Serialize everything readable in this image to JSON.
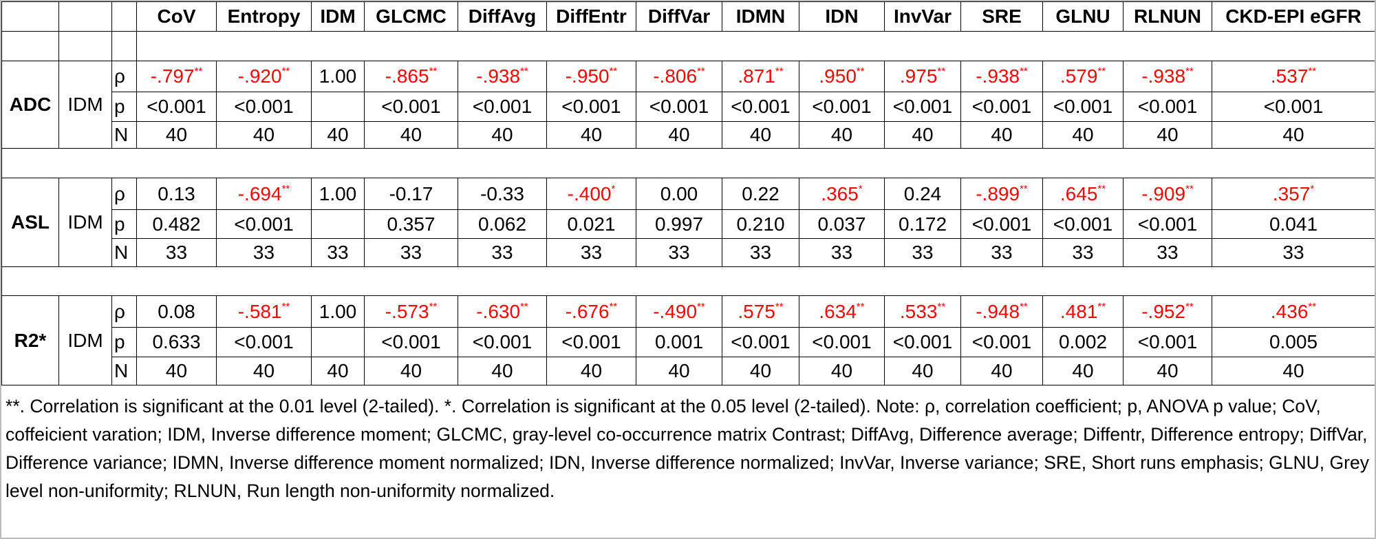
{
  "table": {
    "columns": [
      "CoV",
      "Entropy",
      "IDM",
      "GLCMC",
      "DiffAvg",
      "DiffEntr",
      "DiffVar",
      "IDMN",
      "IDN",
      "InvVar",
      "SRE",
      "GLNU",
      "RLNUN",
      "CKD-EPI eGFR"
    ],
    "groups": [
      {
        "modality": "ADC",
        "feature": "IDM",
        "rows": [
          {
            "stat": "ρ",
            "cells": [
              {
                "value": "-.797",
                "sig": "**"
              },
              {
                "value": "-.920",
                "sig": "**"
              },
              "1.00",
              {
                "value": "-.865",
                "sig": "**"
              },
              {
                "value": "-.938",
                "sig": "**"
              },
              {
                "value": "-.950",
                "sig": "**"
              },
              {
                "value": "-.806",
                "sig": "**"
              },
              {
                "value": ".871",
                "sig": "**"
              },
              {
                "value": ".950",
                "sig": "**"
              },
              {
                "value": ".975",
                "sig": "**"
              },
              {
                "value": "-.938",
                "sig": "**"
              },
              {
                "value": ".579",
                "sig": "**"
              },
              {
                "value": "-.938",
                "sig": "**"
              },
              {
                "value": ".537",
                "sig": "**"
              }
            ]
          },
          {
            "stat": "p",
            "cells": [
              "<0.001",
              "<0.001",
              null,
              "<0.001",
              "<0.001",
              "<0.001",
              "<0.001",
              "<0.001",
              "<0.001",
              "<0.001",
              "<0.001",
              "<0.001",
              "<0.001",
              "<0.001"
            ]
          },
          {
            "stat": "N",
            "cells": [
              "40",
              "40",
              "40",
              "40",
              "40",
              "40",
              "40",
              "40",
              "40",
              "40",
              "40",
              "40",
              "40",
              "40"
            ]
          }
        ]
      },
      {
        "modality": "ASL",
        "feature": "IDM",
        "rows": [
          {
            "stat": "ρ",
            "cells": [
              "0.13",
              {
                "value": "-.694",
                "sig": "**"
              },
              "1.00",
              "-0.17",
              "-0.33",
              {
                "value": "-.400",
                "sig": "*"
              },
              "0.00",
              "0.22",
              {
                "value": ".365",
                "sig": "*"
              },
              "0.24",
              {
                "value": "-.899",
                "sig": "**"
              },
              {
                "value": ".645",
                "sig": "**"
              },
              {
                "value": "-.909",
                "sig": "**"
              },
              {
                "value": ".357",
                "sig": "*"
              }
            ]
          },
          {
            "stat": "p",
            "cells": [
              "0.482",
              "<0.001",
              null,
              "0.357",
              "0.062",
              "0.021",
              "0.997",
              "0.210",
              "0.037",
              "0.172",
              "<0.001",
              "<0.001",
              "<0.001",
              "0.041"
            ]
          },
          {
            "stat": "N",
            "cells": [
              "33",
              "33",
              "33",
              "33",
              "33",
              "33",
              "33",
              "33",
              "33",
              "33",
              "33",
              "33",
              "33",
              "33"
            ]
          }
        ]
      },
      {
        "modality": "R2*",
        "feature": "IDM",
        "rows": [
          {
            "stat": "ρ",
            "cells": [
              "0.08",
              {
                "value": "-.581",
                "sig": "**"
              },
              "1.00",
              {
                "value": "-.573",
                "sig": "**"
              },
              {
                "value": "-.630",
                "sig": "**"
              },
              {
                "value": "-.676",
                "sig": "**"
              },
              {
                "value": "-.490",
                "sig": "**"
              },
              {
                "value": ".575",
                "sig": "**"
              },
              {
                "value": ".634",
                "sig": "**"
              },
              {
                "value": ".533",
                "sig": "**"
              },
              {
                "value": "-.948",
                "sig": "**"
              },
              {
                "value": ".481",
                "sig": "**"
              },
              {
                "value": "-.952",
                "sig": "**"
              },
              {
                "value": ".436",
                "sig": "**"
              }
            ]
          },
          {
            "stat": "p",
            "cells": [
              "0.633",
              "<0.001",
              null,
              "<0.001",
              "<0.001",
              "<0.001",
              "0.001",
              "<0.001",
              "<0.001",
              "<0.001",
              "<0.001",
              "0.002",
              "<0.001",
              "0.005"
            ]
          },
          {
            "stat": "N",
            "cells": [
              "40",
              "40",
              "40",
              "40",
              "40",
              "40",
              "40",
              "40",
              "40",
              "40",
              "40",
              "40",
              "40",
              "40"
            ]
          }
        ]
      }
    ]
  },
  "note": "**. Correlation is significant at the 0.01 level (2-tailed). *. Correlation is significant at the 0.05 level (2-tailed). Note: ρ, correlation coefficient; p, ANOVA p value; CoV, coffeicient varation; IDM, Inverse difference moment; GLCMC, gray-level co-occurrence matrix Contrast; DiffAvg, Difference average; Diffentr, Difference entropy; DiffVar, Difference variance; IDMN, Inverse difference moment normalized; IDN, Inverse difference normalized; InvVar, Inverse variance; SRE, Short runs emphasis; GLNU, Grey level non-uniformity; RLNUN, Run length non-uniformity normalized."
}
